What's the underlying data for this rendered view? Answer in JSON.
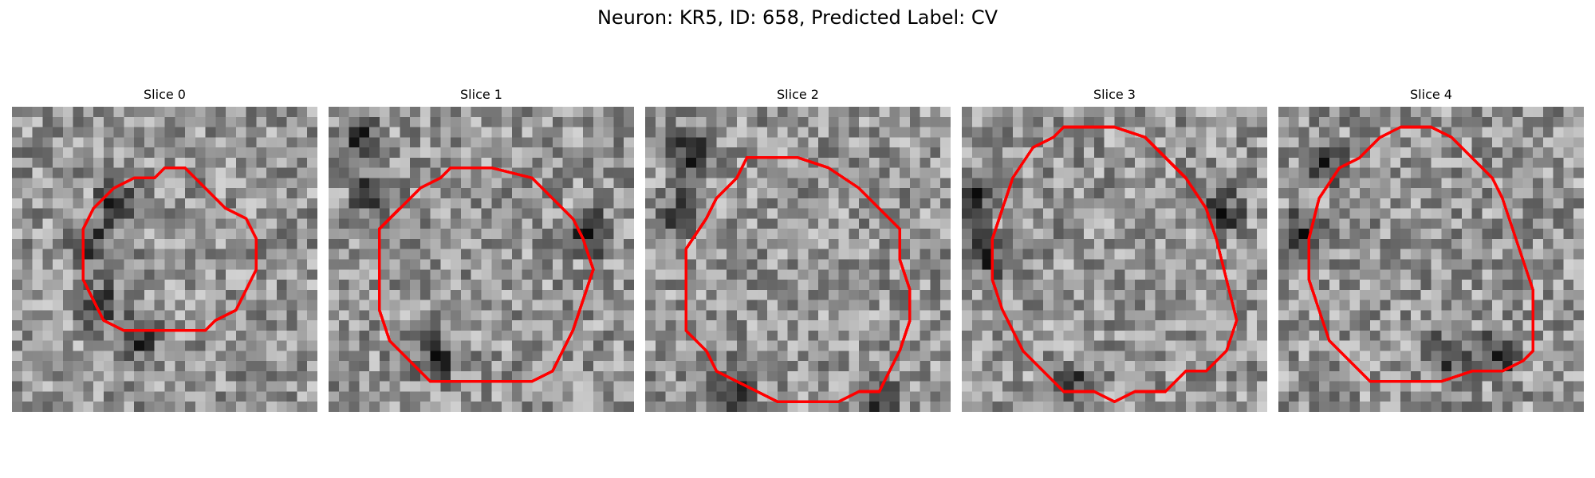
{
  "figure": {
    "title": "Neuron: KR5, ID: 658, Predicted Label: CV"
  },
  "panels": [
    {
      "title": "Slice 0",
      "seed": 11,
      "boundary": [
        [
          15,
          6
        ],
        [
          17,
          6
        ],
        [
          19,
          8
        ],
        [
          21,
          10
        ],
        [
          23,
          11
        ],
        [
          24,
          13
        ],
        [
          24,
          16
        ],
        [
          23,
          18
        ],
        [
          22,
          20
        ],
        [
          20,
          21
        ],
        [
          19,
          22
        ],
        [
          16,
          22
        ],
        [
          13,
          22
        ],
        [
          11,
          22
        ],
        [
          9,
          21
        ],
        [
          8,
          19
        ],
        [
          7,
          17
        ],
        [
          7,
          15
        ],
        [
          7,
          12
        ],
        [
          8,
          10
        ],
        [
          10,
          8
        ],
        [
          12,
          7
        ],
        [
          14,
          7
        ]
      ],
      "dark_rim": [
        [
          10,
          9
        ],
        [
          7,
          13
        ],
        [
          8,
          19
        ],
        [
          12,
          22
        ]
      ]
    },
    {
      "title": "Slice 1",
      "seed": 23,
      "boundary": [
        [
          12,
          6
        ],
        [
          16,
          6
        ],
        [
          20,
          7
        ],
        [
          22,
          9
        ],
        [
          24,
          11
        ],
        [
          25,
          13
        ],
        [
          26,
          16
        ],
        [
          25,
          19
        ],
        [
          24,
          22
        ],
        [
          23,
          24
        ],
        [
          22,
          26
        ],
        [
          20,
          27
        ],
        [
          18,
          27
        ],
        [
          15,
          27
        ],
        [
          12,
          27
        ],
        [
          10,
          27
        ],
        [
          8,
          25
        ],
        [
          6,
          23
        ],
        [
          5,
          20
        ],
        [
          5,
          16
        ],
        [
          5,
          12
        ],
        [
          7,
          10
        ],
        [
          9,
          8
        ],
        [
          11,
          7
        ]
      ],
      "dark_rim": [
        [
          3,
          3
        ],
        [
          4,
          8
        ],
        [
          10,
          24
        ],
        [
          25,
          12
        ]
      ]
    },
    {
      "title": "Slice 2",
      "seed": 37,
      "boundary": [
        [
          10,
          5
        ],
        [
          15,
          5
        ],
        [
          18,
          6
        ],
        [
          21,
          8
        ],
        [
          23,
          10
        ],
        [
          25,
          12
        ],
        [
          25,
          15
        ],
        [
          26,
          18
        ],
        [
          26,
          21
        ],
        [
          25,
          24
        ],
        [
          24,
          26
        ],
        [
          23,
          28
        ],
        [
          21,
          28
        ],
        [
          19,
          29
        ],
        [
          16,
          29
        ],
        [
          13,
          29
        ],
        [
          11,
          28
        ],
        [
          9,
          27
        ],
        [
          7,
          26
        ],
        [
          6,
          24
        ],
        [
          4,
          22
        ],
        [
          4,
          18
        ],
        [
          4,
          14
        ],
        [
          6,
          11
        ],
        [
          7,
          9
        ],
        [
          9,
          7
        ]
      ],
      "dark_rim": [
        [
          4,
          4
        ],
        [
          3,
          10
        ],
        [
          8,
          27
        ],
        [
          22,
          28
        ]
      ]
    },
    {
      "title": "Slice 3",
      "seed": 51,
      "boundary": [
        [
          10,
          2
        ],
        [
          15,
          2
        ],
        [
          18,
          3
        ],
        [
          20,
          5
        ],
        [
          22,
          7
        ],
        [
          24,
          10
        ],
        [
          25,
          13
        ],
        [
          26,
          17
        ],
        [
          27,
          21
        ],
        [
          26,
          24
        ],
        [
          24,
          26
        ],
        [
          22,
          26
        ],
        [
          20,
          28
        ],
        [
          17,
          28
        ],
        [
          15,
          29
        ],
        [
          13,
          28
        ],
        [
          10,
          28
        ],
        [
          8,
          26
        ],
        [
          6,
          24
        ],
        [
          5,
          22
        ],
        [
          4,
          20
        ],
        [
          3,
          17
        ],
        [
          3,
          13
        ],
        [
          4,
          10
        ],
        [
          5,
          7
        ],
        [
          7,
          4
        ],
        [
          9,
          3
        ]
      ],
      "dark_rim": [
        [
          1,
          8
        ],
        [
          2,
          14
        ],
        [
          10,
          27
        ],
        [
          25,
          10
        ]
      ]
    },
    {
      "title": "Slice 4",
      "seed": 67,
      "boundary": [
        [
          12,
          2
        ],
        [
          15,
          2
        ],
        [
          17,
          3
        ],
        [
          19,
          5
        ],
        [
          21,
          7
        ],
        [
          22,
          9
        ],
        [
          23,
          12
        ],
        [
          24,
          15
        ],
        [
          25,
          18
        ],
        [
          25,
          21
        ],
        [
          25,
          24
        ],
        [
          24,
          25
        ],
        [
          22,
          26
        ],
        [
          19,
          26
        ],
        [
          16,
          27
        ],
        [
          12,
          27
        ],
        [
          9,
          27
        ],
        [
          7,
          25
        ],
        [
          5,
          23
        ],
        [
          4,
          20
        ],
        [
          3,
          17
        ],
        [
          3,
          13
        ],
        [
          4,
          9
        ],
        [
          6,
          6
        ],
        [
          8,
          5
        ],
        [
          10,
          3
        ]
      ],
      "dark_rim": [
        [
          4,
          5
        ],
        [
          2,
          12
        ],
        [
          16,
          24
        ],
        [
          21,
          24
        ]
      ]
    }
  ],
  "colors": {
    "boundary": "#ff0000",
    "pixel_min": "#000000",
    "pixel_max": "#ffffff"
  }
}
